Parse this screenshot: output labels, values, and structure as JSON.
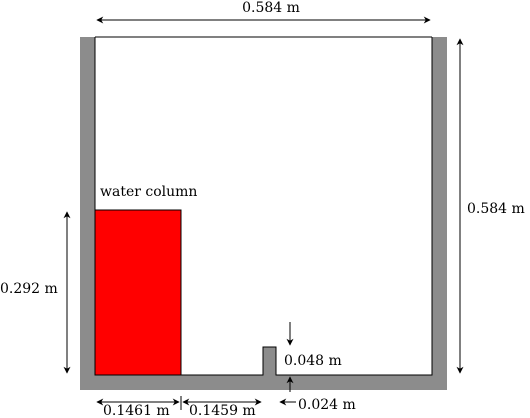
{
  "diagram": {
    "labels": {
      "top_width": "0.584 m",
      "right_height": "0.584 m",
      "water_height": "0.292 m",
      "water_label": "water column",
      "water_width": "0.1461 m",
      "gap_width": "0.1459 m",
      "obstacle_height": "0.048 m",
      "obstacle_width": "0.024 m"
    },
    "colors": {
      "wall": "#8c8c8c",
      "water": "#ff0000",
      "outline": "#000000",
      "background": "#ffffff"
    }
  }
}
